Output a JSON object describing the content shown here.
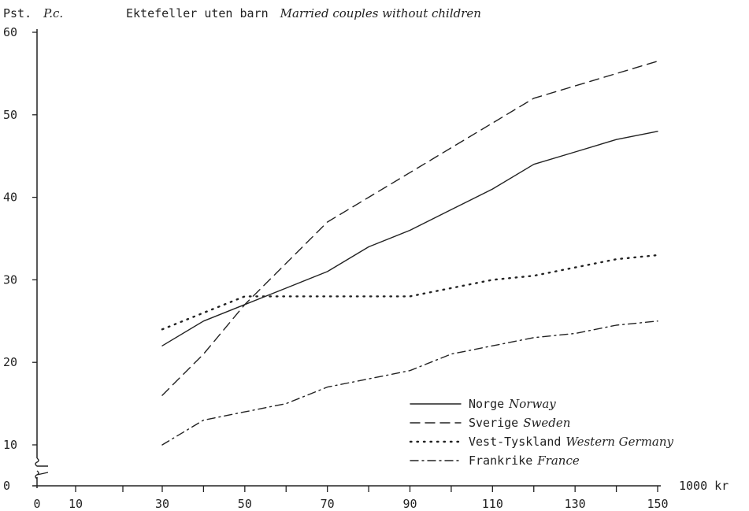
{
  "chart_data": {
    "type": "line",
    "title": "Ektefeller uten barn",
    "title_en": "Married couples without children",
    "ylabel": "Pst.",
    "ylabel_en": "P.c.",
    "xlabel": "1000 kr",
    "xlim": [
      0,
      150
    ],
    "ylim": [
      0,
      60
    ],
    "x_ticks": [
      0,
      10,
      30,
      50,
      70,
      90,
      110,
      130,
      150
    ],
    "y_ticks": [
      0,
      10,
      20,
      30,
      40,
      50,
      60
    ],
    "axis_break": true,
    "grid": false,
    "legend_position": "lower-right",
    "series": [
      {
        "name": "Norge",
        "name_en": "Norway",
        "style": "solid",
        "x": [
          30,
          40,
          50,
          60,
          70,
          80,
          90,
          100,
          110,
          120,
          130,
          140,
          150
        ],
        "y": [
          22,
          25,
          27,
          29,
          31,
          34,
          36,
          38.5,
          41,
          44,
          45.5,
          47,
          48
        ]
      },
      {
        "name": "Sverige",
        "name_en": "Sweden",
        "style": "dashed",
        "x": [
          30,
          40,
          50,
          60,
          70,
          80,
          90,
          100,
          110,
          120,
          130,
          140,
          150
        ],
        "y": [
          16,
          21,
          27,
          32,
          37,
          40,
          43,
          46,
          49,
          52,
          53.5,
          55,
          56.5
        ]
      },
      {
        "name": "Vest-Tyskland",
        "name_en": "Western Germany",
        "style": "dotted",
        "x": [
          30,
          40,
          50,
          60,
          70,
          80,
          90,
          100,
          110,
          120,
          130,
          140,
          150
        ],
        "y": [
          24,
          26,
          28,
          28,
          28,
          28,
          28,
          29,
          30,
          30.5,
          31.5,
          32.5,
          33
        ]
      },
      {
        "name": "Frankrike",
        "name_en": "France",
        "style": "dashdot",
        "x": [
          30,
          40,
          50,
          60,
          70,
          80,
          90,
          100,
          110,
          120,
          130,
          140,
          150
        ],
        "y": [
          10,
          13,
          14,
          15,
          17,
          18,
          19,
          21,
          22,
          23,
          23.5,
          24.5,
          25
        ]
      }
    ]
  },
  "colors": {
    "ink": "#222222",
    "background": "#ffffff"
  }
}
